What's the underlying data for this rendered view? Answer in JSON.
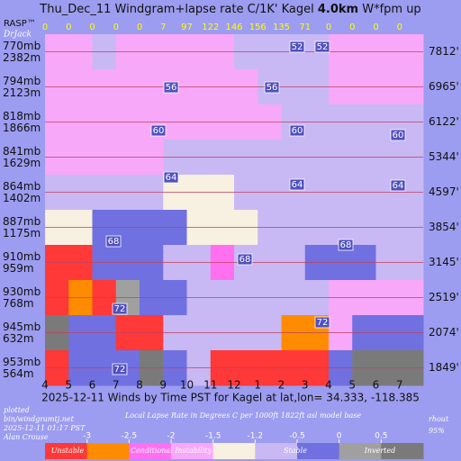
{
  "chart_data": {
    "type": "windgram",
    "title": "Thu_Dec_11 Windgram+lapse rate C/1K'  Kagel",
    "title_bold": "4.0km",
    "title_suffix": "W*fpm up",
    "brand": "RASP™",
    "brand_sub": "DrJack",
    "categories": [
      "4",
      "5",
      "6",
      "7",
      "8",
      "9",
      "10",
      "11",
      "12",
      "1",
      "2",
      "3",
      "4",
      "5",
      "6",
      "7"
    ],
    "wstar": [
      0,
      0,
      0,
      0,
      0,
      7,
      97,
      122,
      146,
      156,
      135,
      71,
      0,
      0,
      0,
      0
    ],
    "levels": [
      {
        "mb": {
          "value": 770,
          "label": "770mb"
        },
        "m": {
          "value": 2382,
          "label": "2382m"
        },
        "ft": {
          "value": 7812,
          "label": "7812'"
        }
      },
      {
        "mb": {
          "value": 794,
          "label": "794mb"
        },
        "m": {
          "value": 2123,
          "label": "2123m"
        },
        "ft": {
          "value": 6965,
          "label": "6965'"
        }
      },
      {
        "mb": {
          "value": 818,
          "label": "818mb"
        },
        "m": {
          "value": 1866,
          "label": "1866m"
        },
        "ft": {
          "value": 6122,
          "label": "6122'"
        }
      },
      {
        "mb": {
          "value": 841,
          "label": "841mb"
        },
        "m": {
          "value": 1629,
          "label": "1629m"
        },
        "ft": {
          "value": 5344,
          "label": "5344'"
        }
      },
      {
        "mb": {
          "value": 864,
          "label": "864mb"
        },
        "m": {
          "value": 1402,
          "label": "1402m"
        },
        "ft": {
          "value": 4597,
          "label": "4597'"
        }
      },
      {
        "mb": {
          "value": 887,
          "label": "887mb"
        },
        "m": {
          "value": 1175,
          "label": "1175m"
        },
        "ft": {
          "value": 3854,
          "label": "3854'"
        }
      },
      {
        "mb": {
          "value": 910,
          "label": "910mb"
        },
        "m": {
          "value": 959,
          "label": "959m"
        },
        "ft": {
          "value": 3145,
          "label": "3145'"
        }
      },
      {
        "mb": {
          "value": 930,
          "label": "930mb"
        },
        "m": {
          "value": 768,
          "label": "768m"
        },
        "ft": {
          "value": 2519,
          "label": "2519'"
        }
      },
      {
        "mb": {
          "value": 945,
          "label": "945mb"
        },
        "m": {
          "value": 632,
          "label": "632m"
        },
        "ft": {
          "value": 2074,
          "label": "2074'"
        }
      },
      {
        "mb": {
          "value": 953,
          "label": "953mb"
        },
        "m": {
          "value": 564,
          "label": "564m"
        },
        "ft": {
          "value": 1849,
          "label": "1849'"
        }
      }
    ],
    "lapse": [
      [
        -1.8,
        -1.8,
        -0.9,
        -1.8,
        -1.8,
        -1.8,
        -1.8,
        -1.8,
        -0.9,
        -0.9,
        -0.9,
        -0.9,
        -1.8,
        -1.8,
        -1.8,
        -1.8
      ],
      [
        -1.8,
        -1.8,
        -1.8,
        -1.8,
        -1.8,
        -1.8,
        -1.8,
        -1.8,
        -1.8,
        -0.9,
        -0.9,
        -0.9,
        -1.8,
        -1.8,
        -1.8,
        -1.8
      ],
      [
        -1.8,
        -1.8,
        -1.8,
        -1.8,
        -1.8,
        -1.8,
        -1.8,
        -1.8,
        -1.8,
        -1.8,
        -0.9,
        -0.9,
        -0.9,
        -0.9,
        -0.9,
        -0.9
      ],
      [
        -1.8,
        -1.8,
        -1.8,
        -1.8,
        -1.8,
        -0.9,
        -0.9,
        -0.9,
        -0.9,
        -0.9,
        -0.9,
        -0.9,
        -0.9,
        -0.9,
        -0.9,
        -0.9
      ],
      [
        -0.9,
        -0.9,
        -0.9,
        -0.9,
        -0.9,
        -1.3,
        -1.3,
        -1.3,
        -0.9,
        -0.9,
        -0.9,
        -0.9,
        -0.9,
        -0.9,
        -0.9,
        -0.9
      ],
      [
        -1.3,
        -1.3,
        -0.3,
        -0.3,
        -0.3,
        -0.3,
        -1.3,
        -1.3,
        -1.3,
        -0.9,
        -0.9,
        -0.9,
        -0.9,
        -0.9,
        -0.9,
        -0.9
      ],
      [
        -3.5,
        -3.5,
        -0.3,
        -0.3,
        -0.3,
        -0.9,
        -0.9,
        -2.2,
        -0.9,
        -0.9,
        -0.9,
        -0.3,
        -0.3,
        -0.3,
        -0.9,
        -0.9
      ],
      [
        -3.5,
        -2.8,
        -3.5,
        0.3,
        -0.3,
        -0.3,
        -0.9,
        -0.9,
        -0.9,
        -0.9,
        -0.9,
        -0.9,
        -1.8,
        -1.8,
        -1.8,
        -1.8
      ],
      [
        0.8,
        -0.3,
        -0.3,
        -3.5,
        -3.5,
        -0.9,
        -0.9,
        -0.9,
        -0.9,
        -0.9,
        -2.8,
        -2.8,
        -1.8,
        -0.3,
        -0.3,
        -0.3
      ],
      [
        -3.5,
        -0.3,
        -0.3,
        -0.3,
        0.8,
        -0.3,
        -0.9,
        -3.5,
        -3.5,
        -3.5,
        -3.5,
        -3.5,
        -0.3,
        0.8,
        0.8,
        0.8
      ]
    ],
    "contours": [
      52,
      52,
      56,
      56,
      60,
      60,
      60,
      64,
      64,
      64,
      68,
      68,
      68,
      72,
      72,
      72
    ],
    "xlabel": "2025-12-11 Winds by Time PST for Kagel at lat,lon= 34.333, -118.385",
    "footer": [
      "plotted",
      "bin/windgramtj.net",
      "2025-12-11 01:17 PST",
      "Alan Crouse"
    ],
    "colorbar_title": "Local Lapse Rate in Degrees C per 1000ft   1822ft asl model base",
    "rh": [
      "rhout",
      "95%"
    ],
    "colorbar": {
      "ticks": [
        -3,
        -2.5,
        -2,
        -1.5,
        -1.2,
        -0.5,
        0,
        0.5
      ],
      "colors": [
        "#ff3838",
        "#ff8c00",
        "#ff70f0",
        "#f8a8f8",
        "#f8f0e0",
        "#c8b8f4",
        "#7070e0",
        "#a0a0a0",
        "#7a7a7a"
      ],
      "labels": [
        "Unstable",
        "Conditional Instability",
        "Stable",
        "Inverted"
      ]
    }
  }
}
